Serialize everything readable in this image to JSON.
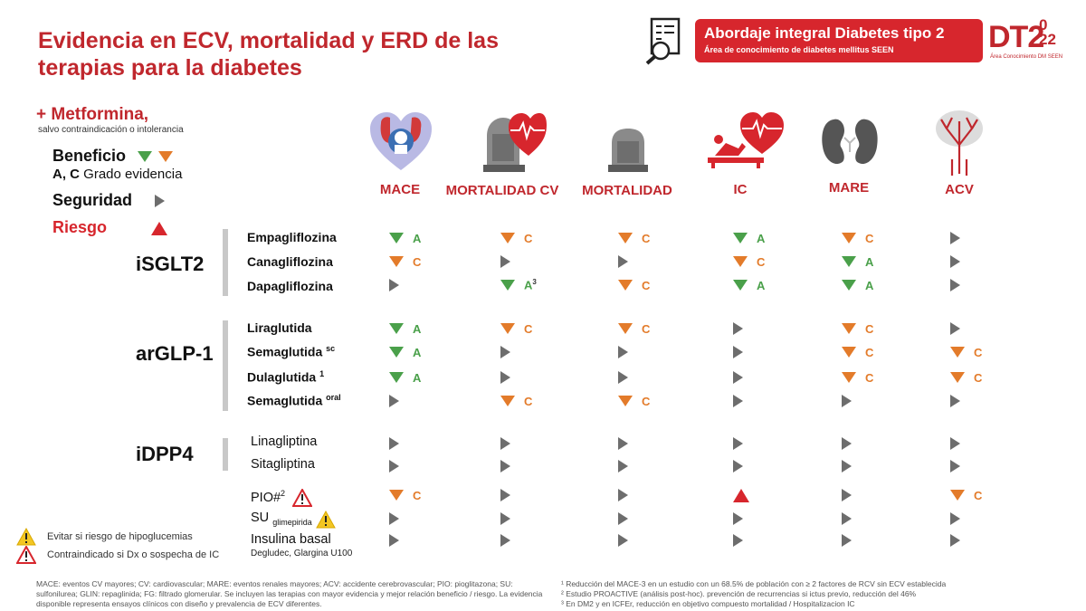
{
  "title": {
    "line1": "Evidencia en ECV, mortalidad y ERD de las",
    "line2": "terapias para la diabetes"
  },
  "header": {
    "main": "Abordaje integral Diabetes tipo 2",
    "sub": "Área de conocimiento de diabetes mellitus SEEN",
    "logo_dt": "DT2",
    "logo_year_top": "0",
    "logo_year_bottom": "22",
    "logo_sub": "Área Conocimiento DM SEEN",
    "icon": "checklist-document-search-icon"
  },
  "legend": {
    "metformina": "+ Metformina,",
    "metformina_sub": "salvo contraindicación o intolerancia",
    "beneficio": "Beneficio",
    "grado_letters": "A, C",
    "grado_text": "Grado evidencia",
    "seguridad": "Seguridad",
    "riesgo": "Riesgo"
  },
  "columns": [
    {
      "label": "MACE",
      "icon": "heart-brain-icon"
    },
    {
      "label": "MORTALIDAD CV",
      "icon": "tombstone-heart-icon"
    },
    {
      "label": "MORTALIDAD",
      "icon": "tombstone-icon"
    },
    {
      "label": "IC",
      "icon": "heart-failure-icon"
    },
    {
      "label": "MARE",
      "icon": "kidneys-icon"
    },
    {
      "label": "ACV",
      "icon": "brain-vessels-icon"
    }
  ],
  "groups": {
    "sglt2": "iSGLT2",
    "glp1": "arGLP-1",
    "dpp4": "iDPP4"
  },
  "drugs": {
    "empa": "Empagliflozina",
    "cana": "Canagliflozina",
    "dapa": "Dapagliflozina",
    "lira": "Liraglutida",
    "sema_sc": "Semaglutida",
    "sema_sc_sup": "sc",
    "dula": "Dulaglutida",
    "dula_sup": "1",
    "sema_oral": "Semaglutida",
    "sema_oral_sup": "oral",
    "lina": "Linagliptina",
    "sita": "Sitagliptina",
    "pio": "PIO#",
    "pio_sup": "2",
    "su": "SU",
    "su_sub": "glimepirida",
    "insulina": "Insulina basal",
    "insulina_note": "Degludec, Glargina U100"
  },
  "rows": [
    {
      "drug": "Empagliflozina",
      "cells": [
        [
          "down-green",
          "A"
        ],
        [
          "down-orange",
          "C"
        ],
        [
          "down-orange",
          "C"
        ],
        [
          "down-green",
          "A"
        ],
        [
          "down-orange",
          "C"
        ],
        [
          "right-gray",
          ""
        ]
      ]
    },
    {
      "drug": "Canagliflozina",
      "cells": [
        [
          "down-orange",
          "C"
        ],
        [
          "right-gray",
          ""
        ],
        [
          "right-gray",
          ""
        ],
        [
          "down-orange",
          "C"
        ],
        [
          "down-green",
          "A"
        ],
        [
          "right-gray",
          ""
        ]
      ]
    },
    {
      "drug": "Dapagliflozina",
      "cells": [
        [
          "right-gray",
          ""
        ],
        [
          "down-green",
          "A3"
        ],
        [
          "down-orange",
          "C"
        ],
        [
          "down-green",
          "A"
        ],
        [
          "down-green",
          "A"
        ],
        [
          "right-gray",
          ""
        ]
      ]
    },
    {
      "drug": "Liraglutida",
      "cells": [
        [
          "down-green",
          "A"
        ],
        [
          "down-orange",
          "C"
        ],
        [
          "down-orange",
          "C"
        ],
        [
          "right-gray",
          ""
        ],
        [
          "down-orange",
          "C"
        ],
        [
          "right-gray",
          ""
        ]
      ]
    },
    {
      "drug": "Semaglutida sc",
      "cells": [
        [
          "down-green",
          "A"
        ],
        [
          "right-gray",
          ""
        ],
        [
          "right-gray",
          ""
        ],
        [
          "right-gray",
          ""
        ],
        [
          "down-orange",
          "C"
        ],
        [
          "down-orange",
          "C"
        ]
      ]
    },
    {
      "drug": "Dulaglutida 1",
      "cells": [
        [
          "down-green",
          "A"
        ],
        [
          "right-gray",
          ""
        ],
        [
          "right-gray",
          ""
        ],
        [
          "right-gray",
          ""
        ],
        [
          "down-orange",
          "C"
        ],
        [
          "down-orange",
          "C"
        ]
      ]
    },
    {
      "drug": "Semaglutida oral",
      "cells": [
        [
          "right-gray",
          ""
        ],
        [
          "down-orange",
          "C"
        ],
        [
          "down-orange",
          "C"
        ],
        [
          "right-gray",
          ""
        ],
        [
          "right-gray",
          ""
        ],
        [
          "right-gray",
          ""
        ]
      ]
    },
    {
      "drug": "Linagliptina",
      "cells": [
        [
          "right-gray",
          ""
        ],
        [
          "right-gray",
          ""
        ],
        [
          "right-gray",
          ""
        ],
        [
          "right-gray",
          ""
        ],
        [
          "right-gray",
          ""
        ],
        [
          "right-gray",
          ""
        ]
      ]
    },
    {
      "drug": "Sitagliptina",
      "cells": [
        [
          "right-gray",
          ""
        ],
        [
          "right-gray",
          ""
        ],
        [
          "right-gray",
          ""
        ],
        [
          "right-gray",
          ""
        ],
        [
          "right-gray",
          ""
        ],
        [
          "right-gray",
          ""
        ]
      ]
    },
    {
      "drug": "PIO#2",
      "cells": [
        [
          "down-orange",
          "C"
        ],
        [
          "right-gray",
          ""
        ],
        [
          "right-gray",
          ""
        ],
        [
          "up-red",
          ""
        ],
        [
          "right-gray",
          ""
        ],
        [
          "down-orange",
          "C"
        ]
      ]
    },
    {
      "drug": "SU glimepirida",
      "cells": [
        [
          "right-gray",
          ""
        ],
        [
          "right-gray",
          ""
        ],
        [
          "right-gray",
          ""
        ],
        [
          "right-gray",
          ""
        ],
        [
          "right-gray",
          ""
        ],
        [
          "right-gray",
          ""
        ]
      ]
    },
    {
      "drug": "Insulina basal",
      "cells": [
        [
          "right-gray",
          ""
        ],
        [
          "right-gray",
          ""
        ],
        [
          "right-gray",
          ""
        ],
        [
          "right-gray",
          ""
        ],
        [
          "right-gray",
          ""
        ],
        [
          "right-gray",
          ""
        ]
      ]
    }
  ],
  "warnings": {
    "hipo": "Evitar si riesgo de hipoglucemias",
    "ic": "Contraindicado si Dx o sospecha de IC"
  },
  "footnotes": {
    "abbrev": "MACE: eventos CV mayores; CV: cardiovascular; MARE: eventos renales mayores; ACV: accidente cerebrovascular; PIO: pioglitazona; SU: sulfonilurea; GLIN: repaglinida; FG: filtrado glomerular. Se incluyen las terapias con mayor evidencia y mejor relación beneficio / riesgo. La evidencia disponible representa ensayos clínicos con diseño y prevalencia de ECV diferentes.",
    "n1": "¹ Reducción del MACE-3 en un estudio con un 68.5% de población con ≥ 2 factores de RCV sin ECV establecida",
    "n2": "² Estudio PROACTIVE (análisis post-hoc). prevención de recurrencias si ictus previo, reducción del 46%",
    "n3": "³ En DM2 y en ICFEr, reducción en objetivo compuesto mortalidad / Hospitalizacion IC"
  },
  "colors": {
    "brand_red": "#c0272d",
    "benefit_green": "#4aa04a",
    "benefit_orange": "#e37b2a",
    "safety_gray": "#6d6d6d",
    "risk_red": "#d7262d"
  }
}
